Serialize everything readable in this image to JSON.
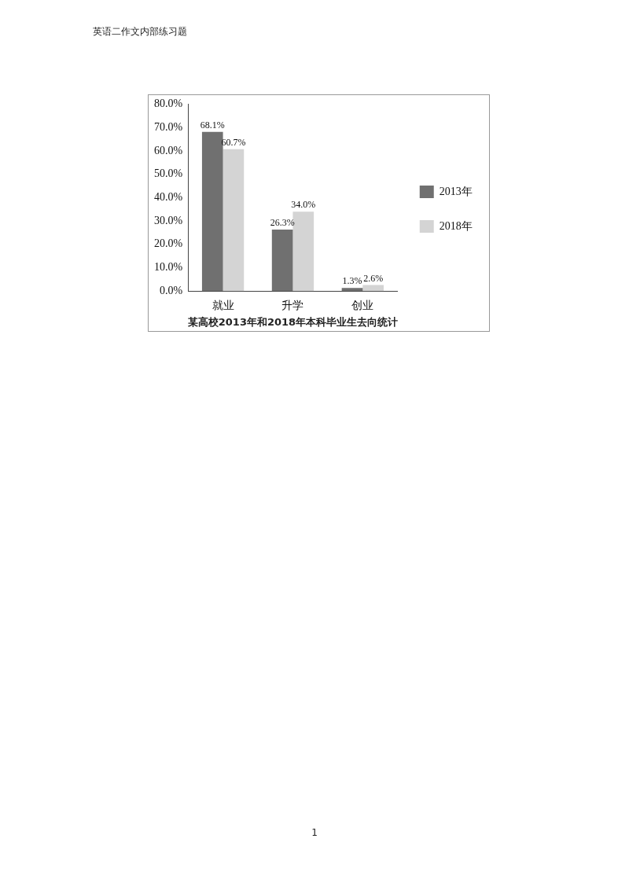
{
  "chart_data": {
    "type": "bar",
    "title": "某高校2013年和2018年本科毕业生去向统计",
    "categories": [
      "就业",
      "升学",
      "创业"
    ],
    "series": [
      {
        "name": "2013年",
        "color": "#707070",
        "values": [
          68.1,
          26.3,
          1.3
        ],
        "value_labels": [
          "68.1%",
          "26.3%",
          "1.3%"
        ]
      },
      {
        "name": "2018年",
        "color": "#d4d4d4",
        "values": [
          60.7,
          34.0,
          2.6
        ],
        "value_labels": [
          "60.7%",
          "34.0%",
          "2.6%"
        ]
      }
    ],
    "ylim": [
      0,
      80
    ],
    "yticks": [
      {
        "value": 0,
        "label": "0.0%"
      },
      {
        "value": 10,
        "label": "10.0%"
      },
      {
        "value": 20,
        "label": "20.0%"
      },
      {
        "value": 30,
        "label": "30.0%"
      },
      {
        "value": 40,
        "label": "40.0%"
      },
      {
        "value": 50,
        "label": "50.0%"
      },
      {
        "value": 60,
        "label": "60.0%"
      },
      {
        "value": 70,
        "label": "70.0%"
      },
      {
        "value": 80,
        "label": "80.0%"
      }
    ],
    "grid": false,
    "legend": "right",
    "annotations": [
      "英语二作文内部练习题",
      "1"
    ]
  }
}
